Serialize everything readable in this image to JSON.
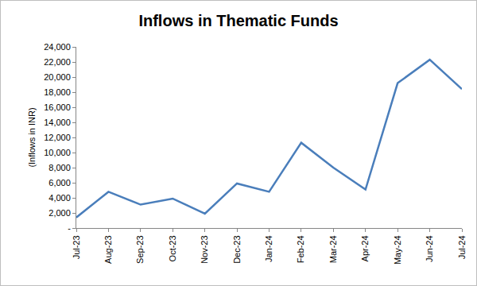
{
  "chart_data": {
    "type": "line",
    "title": "Inflows in Thematic Funds",
    "ylabel": "(Inflows in INR)",
    "categories": [
      "Jul-23",
      "Aug-23",
      "Sep-23",
      "Oct-23",
      "Nov-23",
      "Dec-23",
      "Jan-24",
      "Feb-24",
      "Mar-24",
      "Apr-24",
      "May-24",
      "Jun-24",
      "Jul-24"
    ],
    "values": [
      1400,
      4800,
      3100,
      3900,
      1900,
      5900,
      4800,
      11300,
      8000,
      5100,
      19200,
      22300,
      18400
    ],
    "color": "#4a7ebb",
    "ylim": [
      0,
      24000
    ],
    "yticks": [
      {
        "value": 0,
        "label": "-"
      },
      {
        "value": 2000,
        "label": "2,000"
      },
      {
        "value": 4000,
        "label": "4,000"
      },
      {
        "value": 6000,
        "label": "6,000"
      },
      {
        "value": 8000,
        "label": "8,000"
      },
      {
        "value": 10000,
        "label": "10,000"
      },
      {
        "value": 12000,
        "label": "12,000"
      },
      {
        "value": 14000,
        "label": "14,000"
      },
      {
        "value": 16000,
        "label": "16,000"
      },
      {
        "value": 18000,
        "label": "18,000"
      },
      {
        "value": 20000,
        "label": "20,000"
      },
      {
        "value": 22000,
        "label": "22,000"
      },
      {
        "value": 24000,
        "label": "24,000"
      }
    ],
    "grid": false
  }
}
